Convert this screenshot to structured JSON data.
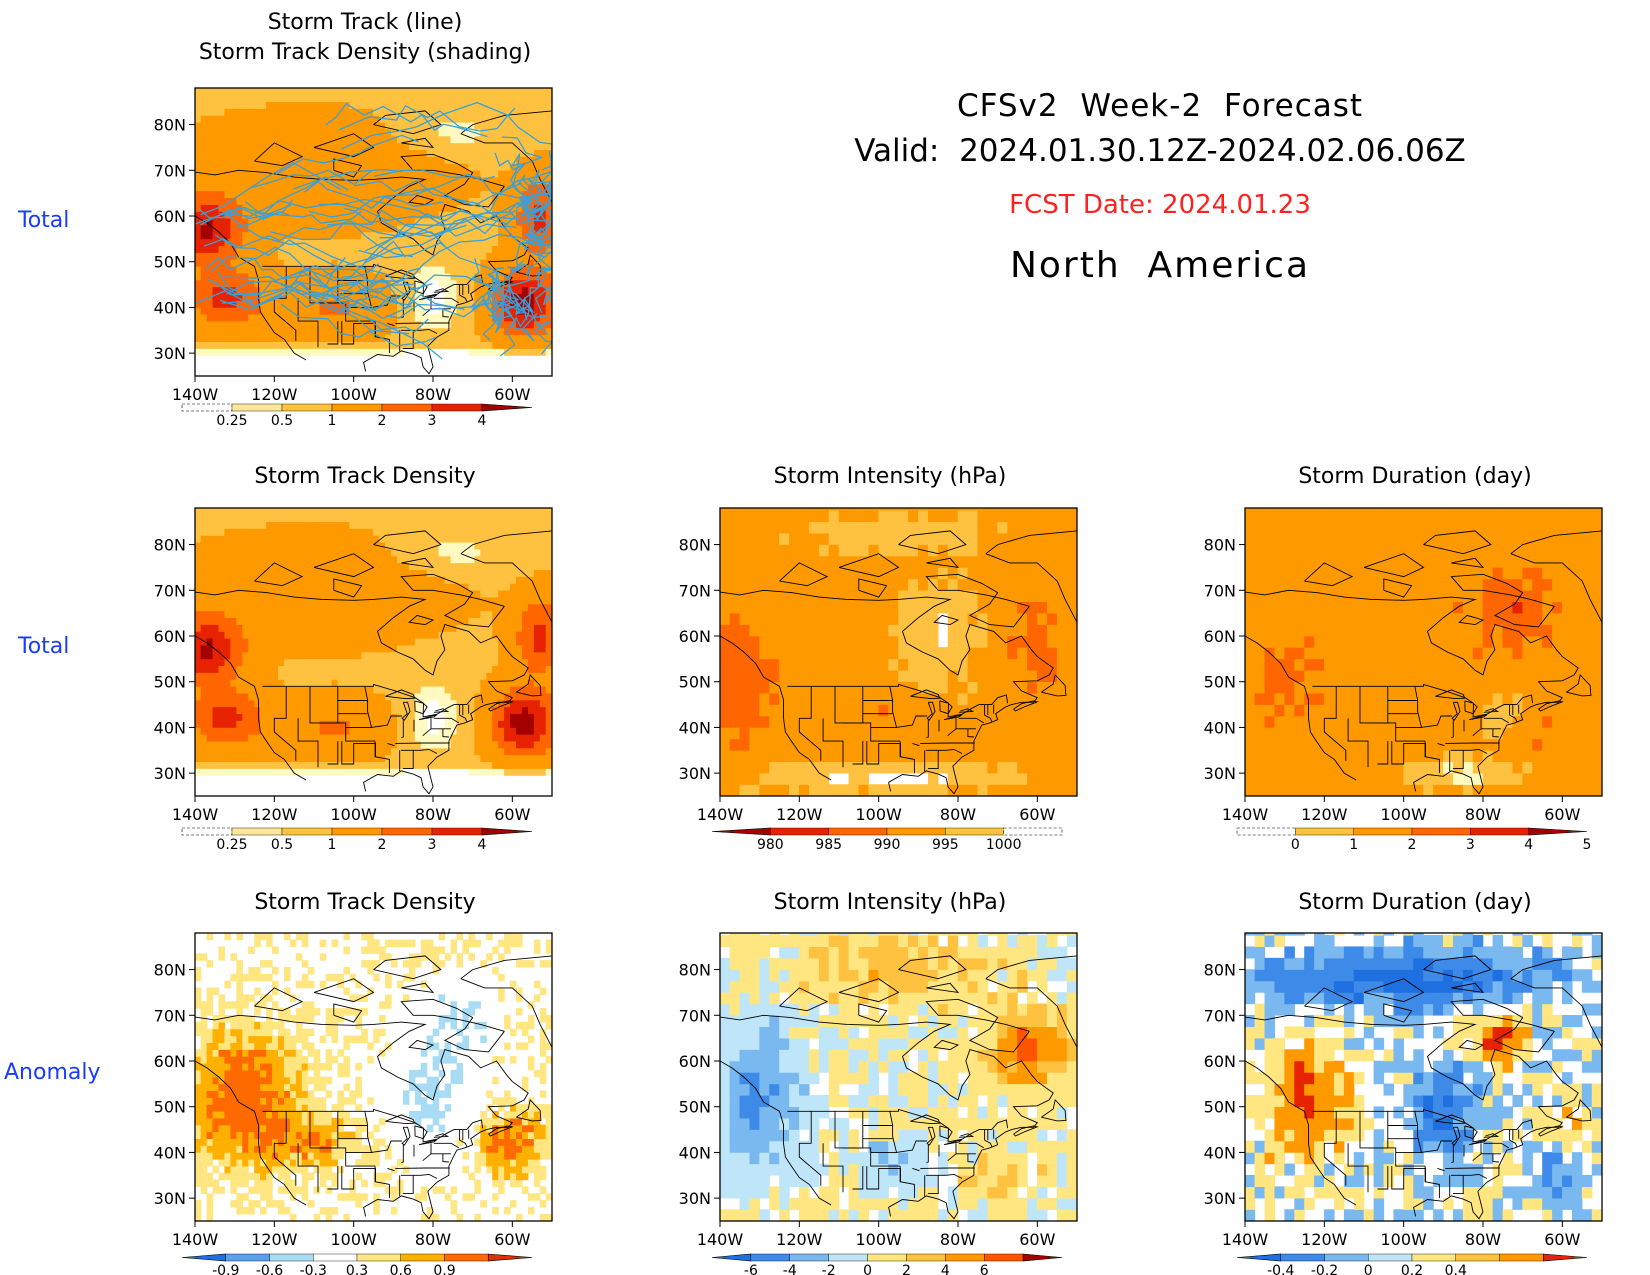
{
  "header": {
    "title": "CFSv2  Week-2  Forecast",
    "valid": "Valid:  2024.01.30.12Z-2024.02.06.06Z",
    "fcst_date": "FCST Date: 2024.01.23",
    "region": "North  America"
  },
  "row_labels": [
    "Total",
    "Total",
    "Anomaly"
  ],
  "lat_ticks": [
    "80N",
    "70N",
    "60N",
    "50N",
    "40N",
    "30N"
  ],
  "lon_ticks": [
    "140W",
    "120W",
    "100W",
    "80W",
    "60W"
  ],
  "panels": [
    {
      "id": "p1",
      "title_line1": "Storm Track (line)",
      "title_line2": "Storm Track Density (shading)",
      "colorbar": "cb_density",
      "field": "density_total",
      "tracks": true
    },
    {
      "id": "p2",
      "title_line1": "Storm Track Density",
      "colorbar": "cb_density",
      "field": "density_total"
    },
    {
      "id": "p3",
      "title_line1": "Storm Intensity (hPa)",
      "colorbar": "cb_intensity",
      "field": "intensity_total"
    },
    {
      "id": "p4",
      "title_line1": "Storm Duration (day)",
      "colorbar": "cb_duration",
      "field": "duration_total"
    },
    {
      "id": "p5",
      "title_line1": "Storm Track Density",
      "colorbar": "cb_density_anom",
      "field": "density_anom"
    },
    {
      "id": "p6",
      "title_line1": "Storm Intensity (hPa)",
      "colorbar": "cb_intensity_anom",
      "field": "intensity_anom"
    },
    {
      "id": "p7",
      "title_line1": "Storm Duration (day)",
      "colorbar": "cb_duration_anom",
      "field": "duration_anom"
    }
  ],
  "colorbars": {
    "cb_density": {
      "labels": [
        "0.25",
        "0.5",
        "1",
        "2",
        "3",
        "4"
      ],
      "colors": [
        "#fffabf",
        "#ffe699",
        "#ffc240",
        "#ff9900",
        "#ff6600",
        "#e62200",
        "#a50000"
      ],
      "dashed_low": true,
      "arrow_high": true
    },
    "cb_intensity": {
      "labels": [
        "980",
        "985",
        "990",
        "995",
        "1000"
      ],
      "colors": [
        "#a50000",
        "#e62200",
        "#ff6600",
        "#ff9900",
        "#ffc240",
        "#fffabf"
      ],
      "arrow_low": true,
      "dashed_high": true
    },
    "cb_duration": {
      "labels": [
        "0",
        "1",
        "2",
        "3",
        "4",
        "5"
      ],
      "colors": [
        "#fffabf",
        "#ffc240",
        "#ff9900",
        "#ff6600",
        "#e62200",
        "#a50000"
      ],
      "dashed_low": true,
      "arrow_high": true
    },
    "cb_density_anom": {
      "labels": [
        "-0.9",
        "-0.6",
        "-0.3",
        "0.3",
        "0.6",
        "0.9"
      ],
      "colors": [
        "#1e6fe0",
        "#5aa0f0",
        "#a8dcf5",
        "#ffffff",
        "#ffe680",
        "#ffb000",
        "#ff6a00",
        "#e03000"
      ],
      "arrow_low": true,
      "arrow_high": true
    },
    "cb_intensity_anom": {
      "labels": [
        "-6",
        "-4",
        "-2",
        "0",
        "2",
        "4",
        "6"
      ],
      "colors": [
        "#1e6fe0",
        "#3d8ae8",
        "#7ab8f0",
        "#bfe6f8",
        "#ffe680",
        "#ffc240",
        "#ff9900",
        "#ff5500",
        "#a50000"
      ],
      "arrow_low": true,
      "arrow_high": true
    },
    "cb_duration_anom": {
      "labels": [
        "-0.4",
        "-0.2",
        "0",
        "0.2",
        "0.4"
      ],
      "colors": [
        "#1e6fe0",
        "#3d8ae8",
        "#7ab8f0",
        "#bfe6f8",
        "#ffe680",
        "#ffc240",
        "#ff9900",
        "#e62200"
      ],
      "arrow_low": true,
      "arrow_high": true
    }
  },
  "colors": {
    "row_label": "#1a3cff",
    "fcst_date": "#ff2020",
    "track_line": "#3aa0d8"
  }
}
